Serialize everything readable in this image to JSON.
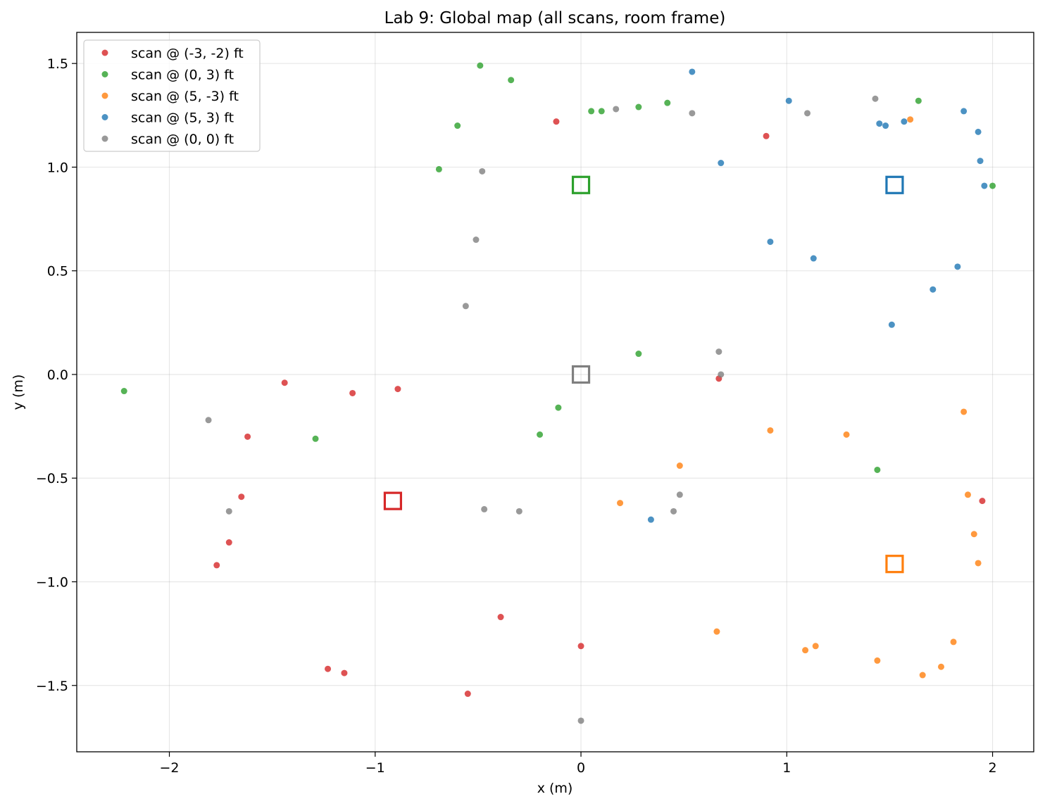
{
  "chart_data": {
    "type": "scatter",
    "title": "Lab 9: Global map (all scans, room frame)",
    "xlabel": "x (m)",
    "ylabel": "y (m)",
    "xlim": [
      -2.45,
      2.2
    ],
    "ylim": [
      -1.82,
      1.65
    ],
    "xticks": [
      -2,
      -1,
      0,
      1,
      2
    ],
    "xtick_labels": [
      "−2",
      "−1",
      "0",
      "1",
      "2"
    ],
    "yticks": [
      -1.5,
      -1.0,
      -0.5,
      0.0,
      0.5,
      1.0,
      1.5
    ],
    "ytick_labels": [
      "−1.5",
      "−1.0",
      "−0.5",
      "0.0",
      "0.5",
      "1.0",
      "1.5"
    ],
    "grid": true,
    "legend_position": "top-left",
    "series": [
      {
        "name": "scan @ (-3, -2) ft",
        "color": "#d62728",
        "robot_pose": [
          -0.914,
          -0.61
        ],
        "points": [
          [
            -0.12,
            1.22
          ],
          [
            0.9,
            1.15
          ],
          [
            -1.44,
            -0.04
          ],
          [
            -1.11,
            -0.09
          ],
          [
            -0.89,
            -0.07
          ],
          [
            -1.62,
            -0.3
          ],
          [
            -1.65,
            -0.59
          ],
          [
            -1.71,
            -0.81
          ],
          [
            -1.77,
            -0.92
          ],
          [
            -0.39,
            -1.17
          ],
          [
            0.0,
            -1.31
          ],
          [
            -1.23,
            -1.42
          ],
          [
            -1.15,
            -1.44
          ],
          [
            -0.55,
            -1.54
          ],
          [
            0.67,
            -0.02
          ],
          [
            1.95,
            -0.61
          ]
        ]
      },
      {
        "name": "scan @ (0, 3) ft",
        "color": "#2ca02c",
        "robot_pose": [
          0.0,
          0.914
        ],
        "points": [
          [
            -0.49,
            1.49
          ],
          [
            -0.34,
            1.42
          ],
          [
            -0.6,
            1.2
          ],
          [
            -0.69,
            0.99
          ],
          [
            0.05,
            1.27
          ],
          [
            0.1,
            1.27
          ],
          [
            0.28,
            1.29
          ],
          [
            0.42,
            1.31
          ],
          [
            1.64,
            1.32
          ],
          [
            2.0,
            0.91
          ],
          [
            0.28,
            0.1
          ],
          [
            -0.11,
            -0.16
          ],
          [
            -0.2,
            -0.29
          ],
          [
            -1.29,
            -0.31
          ],
          [
            -2.22,
            -0.08
          ],
          [
            1.44,
            -0.46
          ]
        ]
      },
      {
        "name": "scan @ (5, -3) ft",
        "color": "#ff7f0e",
        "robot_pose": [
          1.524,
          -0.914
        ],
        "points": [
          [
            1.6,
            1.23
          ],
          [
            0.92,
            -0.27
          ],
          [
            1.29,
            -0.29
          ],
          [
            1.86,
            -0.18
          ],
          [
            0.48,
            -0.44
          ],
          [
            0.19,
            -0.62
          ],
          [
            1.88,
            -0.58
          ],
          [
            1.91,
            -0.77
          ],
          [
            1.93,
            -0.91
          ],
          [
            0.66,
            -1.24
          ],
          [
            1.09,
            -1.33
          ],
          [
            1.14,
            -1.31
          ],
          [
            1.44,
            -1.38
          ],
          [
            1.66,
            -1.45
          ],
          [
            1.75,
            -1.41
          ],
          [
            1.81,
            -1.29
          ]
        ]
      },
      {
        "name": "scan @ (5, 3) ft",
        "color": "#1f77b4",
        "robot_pose": [
          1.524,
          0.914
        ],
        "points": [
          [
            0.54,
            1.46
          ],
          [
            1.01,
            1.32
          ],
          [
            1.45,
            1.21
          ],
          [
            1.48,
            1.2
          ],
          [
            1.57,
            1.22
          ],
          [
            1.86,
            1.27
          ],
          [
            1.93,
            1.17
          ],
          [
            1.94,
            1.03
          ],
          [
            1.96,
            0.91
          ],
          [
            0.68,
            1.02
          ],
          [
            0.92,
            0.64
          ],
          [
            1.13,
            0.56
          ],
          [
            1.83,
            0.52
          ],
          [
            1.71,
            0.41
          ],
          [
            1.51,
            0.24
          ],
          [
            0.34,
            -0.7
          ]
        ]
      },
      {
        "name": "scan @ (0, 0) ft",
        "color": "#7f7f7f",
        "robot_pose": [
          0.0,
          0.0
        ],
        "points": [
          [
            0.17,
            1.28
          ],
          [
            0.54,
            1.26
          ],
          [
            1.1,
            1.26
          ],
          [
            1.43,
            1.33
          ],
          [
            -0.48,
            0.98
          ],
          [
            -0.51,
            0.65
          ],
          [
            -0.56,
            0.33
          ],
          [
            0.67,
            0.11
          ],
          [
            0.68,
            0.0
          ],
          [
            -1.81,
            -0.22
          ],
          [
            -1.71,
            -0.66
          ],
          [
            -0.47,
            -0.65
          ],
          [
            -0.3,
            -0.66
          ],
          [
            0.45,
            -0.66
          ],
          [
            0.48,
            -0.58
          ],
          [
            0.0,
            -1.67
          ]
        ]
      }
    ]
  }
}
